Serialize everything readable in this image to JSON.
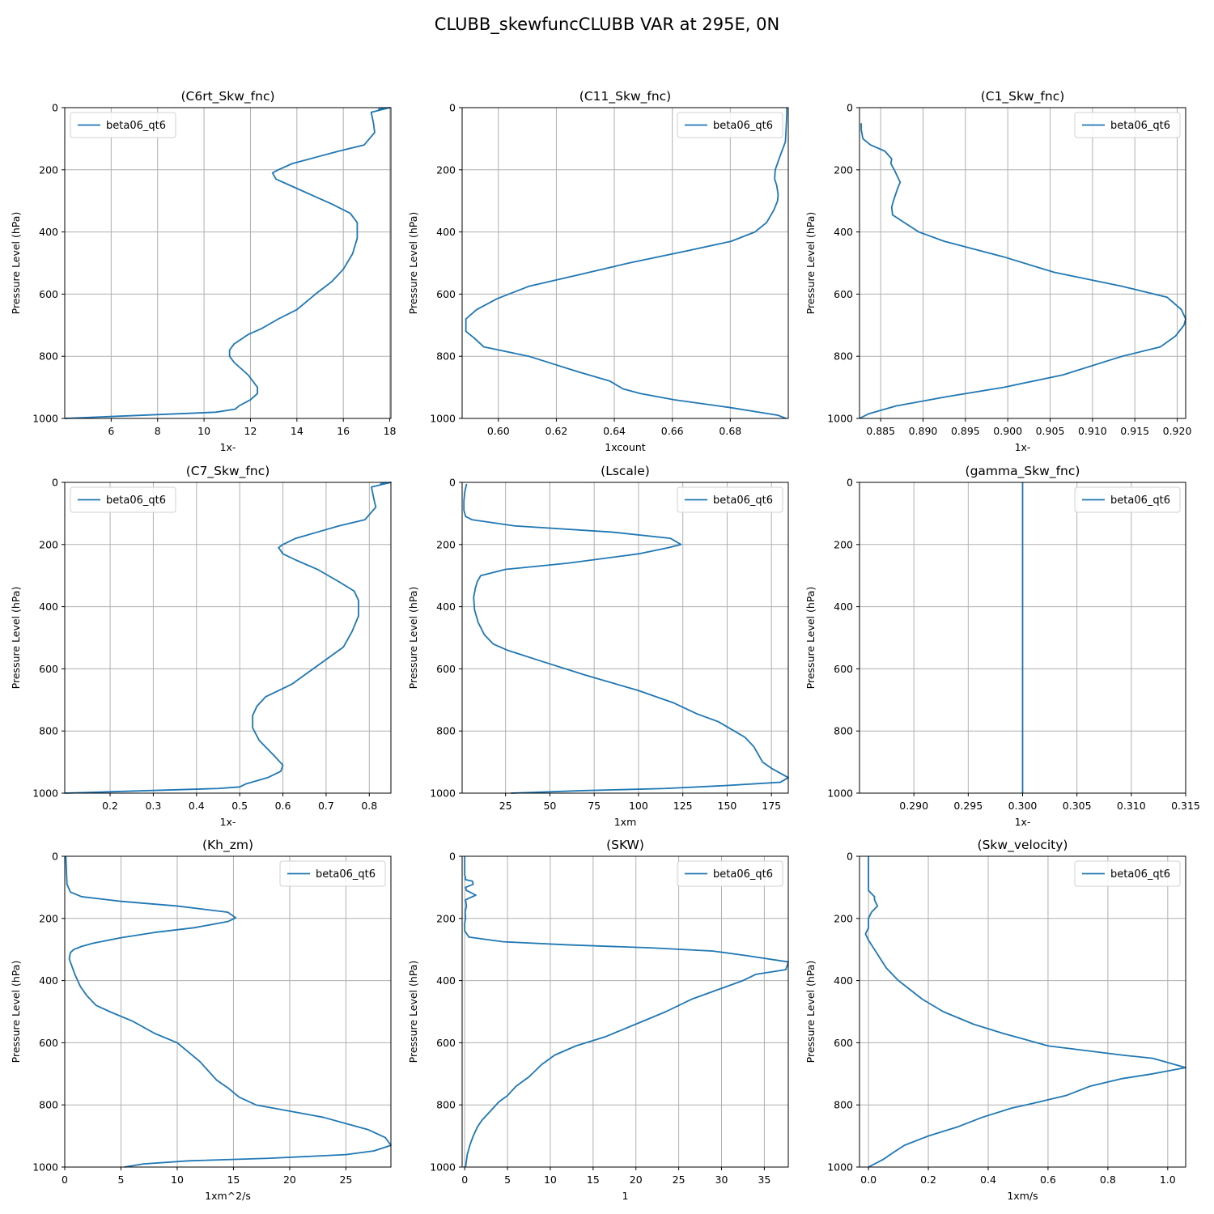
{
  "figure_title": "CLUBB_skewfuncCLUBB VAR at 295E, 0N",
  "colors": {
    "series": "#1f77b4",
    "grid": "#b0b0b0",
    "axis": "#000000"
  },
  "chart_data": [
    {
      "type": "line",
      "title": "(C6rt_Skw_fnc)",
      "xlabel": "1x-",
      "ylabel": "Pressure Level (hPa)",
      "xlim": [
        4.0,
        18.05
      ],
      "ylim": [
        1000,
        0
      ],
      "xticks": [
        6,
        8,
        10,
        12,
        14,
        16,
        18
      ],
      "yticks": [
        0,
        200,
        400,
        600,
        800,
        1000
      ],
      "grid": true,
      "legend": {
        "entries": [
          "beta06_qt6"
        ],
        "location": "top-left"
      },
      "series": [
        {
          "name": "beta06_qt6",
          "x": [
            17.5,
            18.0,
            17.2,
            17.3,
            17.35,
            16.9,
            15.8,
            14.8,
            13.8,
            13.2,
            12.95,
            13.1,
            13.7,
            14.6,
            15.5,
            16.3,
            16.6,
            16.6,
            16.4,
            16.0,
            15.5,
            14.8,
            14.0,
            13.2,
            12.5,
            11.9,
            11.3,
            11.1,
            11.1,
            11.3,
            11.9,
            12.3,
            12.3,
            12.0,
            11.5,
            11.35,
            10.5,
            4.0
          ],
          "y": [
            5,
            0,
            15,
            50,
            80,
            120,
            140,
            160,
            180,
            200,
            210,
            230,
            250,
            280,
            310,
            340,
            370,
            420,
            470,
            520,
            560,
            600,
            650,
            680,
            710,
            730,
            760,
            780,
            800,
            820,
            860,
            900,
            920,
            940,
            960,
            970,
            980,
            1000
          ]
        }
      ]
    },
    {
      "type": "line",
      "title": "(C11_Skw_fnc)",
      "xlabel": "1xcount",
      "ylabel": "Pressure Level (hPa)",
      "xlim": [
        0.5875,
        0.7
      ],
      "ylim": [
        1000,
        0
      ],
      "xticks": [
        0.6,
        0.62,
        0.64,
        0.66,
        0.68
      ],
      "yticks": [
        0,
        200,
        400,
        600,
        800,
        1000
      ],
      "grid": true,
      "legend": {
        "entries": [
          "beta06_qt6"
        ],
        "location": "top-right"
      },
      "series": [
        {
          "name": "beta06_qt6",
          "x": [
            0.6995,
            0.6995,
            0.6993,
            0.699,
            0.697,
            0.6955,
            0.6953,
            0.696,
            0.6965,
            0.6963,
            0.695,
            0.6925,
            0.6885,
            0.6803,
            0.6655,
            0.645,
            0.6267,
            0.6105,
            0.5995,
            0.5925,
            0.5888,
            0.5888,
            0.5915,
            0.595,
            0.6105,
            0.6275,
            0.6385,
            0.643,
            0.649,
            0.6607,
            0.6799,
            0.6965,
            0.6992
          ],
          "y": [
            0,
            20,
            60,
            110,
            160,
            200,
            230,
            250,
            280,
            300,
            330,
            370,
            400,
            430,
            460,
            500,
            540,
            575,
            615,
            650,
            680,
            720,
            740,
            770,
            800,
            850,
            880,
            905,
            920,
            940,
            965,
            990,
            1000
          ]
        }
      ]
    },
    {
      "type": "line",
      "title": "(C1_Skw_fnc)",
      "xlabel": "1x-",
      "ylabel": "Pressure Level (hPa)",
      "xlim": [
        0.8825,
        0.921
      ],
      "ylim": [
        1000,
        0
      ],
      "xticks": [
        0.885,
        0.89,
        0.895,
        0.9,
        0.905,
        0.91,
        0.915,
        0.92
      ],
      "yticks": [
        0,
        200,
        400,
        600,
        800,
        1000
      ],
      "grid": true,
      "legend": {
        "entries": [
          "beta06_qt6"
        ],
        "location": "top-right"
      },
      "series": [
        {
          "name": "beta06_qt6",
          "x": [
            0.8827,
            0.8827,
            0.8829,
            0.8838,
            0.8855,
            0.8863,
            0.8862,
            0.8866,
            0.8873,
            0.887,
            0.8865,
            0.8863,
            0.8864,
            0.8878,
            0.8895,
            0.8925,
            0.8995,
            0.9055,
            0.9135,
            0.9188,
            0.9205,
            0.921,
            0.9208,
            0.9198,
            0.918,
            0.9135,
            0.9065,
            0.8995,
            0.8928,
            0.8868,
            0.8836,
            0.8825
          ],
          "y": [
            50,
            70,
            100,
            120,
            140,
            165,
            180,
            200,
            240,
            260,
            300,
            320,
            345,
            370,
            400,
            430,
            480,
            530,
            575,
            610,
            650,
            680,
            700,
            735,
            770,
            800,
            860,
            900,
            930,
            960,
            985,
            1000
          ]
        }
      ]
    },
    {
      "type": "line",
      "title": "(C7_Skw_fnc)",
      "xlabel": "1x-",
      "ylabel": "Pressure Level (hPa)",
      "xlim": [
        0.095,
        0.85
      ],
      "ylim": [
        1000,
        0
      ],
      "xticks": [
        0.2,
        0.3,
        0.4,
        0.5,
        0.6,
        0.7,
        0.8
      ],
      "yticks": [
        0,
        200,
        400,
        600,
        800,
        1000
      ],
      "grid": true,
      "legend": {
        "entries": [
          "beta06_qt6"
        ],
        "location": "top-left"
      },
      "series": [
        {
          "name": "beta06_qt6",
          "x": [
            0.825,
            0.85,
            0.805,
            0.81,
            0.815,
            0.79,
            0.73,
            0.68,
            0.63,
            0.6,
            0.59,
            0.6,
            0.63,
            0.68,
            0.73,
            0.765,
            0.775,
            0.775,
            0.76,
            0.74,
            0.7,
            0.66,
            0.62,
            0.56,
            0.54,
            0.53,
            0.53,
            0.545,
            0.58,
            0.6,
            0.595,
            0.565,
            0.515,
            0.5,
            0.45,
            0.095
          ],
          "y": [
            5,
            0,
            15,
            50,
            80,
            120,
            140,
            160,
            180,
            200,
            210,
            230,
            250,
            280,
            320,
            350,
            380,
            430,
            480,
            530,
            570,
            610,
            650,
            690,
            720,
            750,
            790,
            830,
            880,
            910,
            930,
            950,
            970,
            980,
            985,
            1000
          ]
        }
      ]
    },
    {
      "type": "line",
      "title": "(Lscale)",
      "xlabel": "1xm",
      "ylabel": "Pressure Level (hPa)",
      "xlim": [
        0.5,
        184.5
      ],
      "ylim": [
        1000,
        0
      ],
      "xticks": [
        25,
        50,
        75,
        100,
        125,
        150,
        175
      ],
      "yticks": [
        0,
        200,
        400,
        600,
        800,
        1000
      ],
      "grid": true,
      "legend": {
        "entries": [
          "beta06_qt6"
        ],
        "location": "top-right"
      },
      "series": [
        {
          "name": "beta06_qt6",
          "x": [
            3,
            2,
            1.5,
            1.5,
            2.5,
            6,
            30,
            85,
            118,
            124,
            117,
            100,
            60,
            25,
            11,
            9,
            8,
            7,
            7.5,
            9.5,
            13,
            18,
            26,
            45,
            70,
            100,
            120,
            133,
            145,
            154,
            160,
            165,
            168,
            170,
            175,
            184.5,
            180,
            151,
            115,
            68,
            28
          ],
          "y": [
            5,
            30,
            60,
            90,
            110,
            120,
            140,
            160,
            180,
            200,
            210,
            230,
            260,
            280,
            300,
            320,
            340,
            370,
            410,
            450,
            490,
            520,
            540,
            575,
            620,
            670,
            710,
            745,
            770,
            800,
            820,
            850,
            880,
            900,
            920,
            950,
            965,
            975,
            985,
            992,
            1000
          ]
        }
      ]
    },
    {
      "type": "line",
      "title": "(gamma_Skw_fnc)",
      "xlabel": "1x-",
      "ylabel": "Pressure Level (hPa)",
      "xlim": [
        0.285,
        0.315
      ],
      "ylim": [
        1000,
        0
      ],
      "xticks": [
        0.29,
        0.295,
        0.3,
        0.305,
        0.31,
        0.315
      ],
      "yticks": [
        0,
        200,
        400,
        600,
        800,
        1000
      ],
      "grid": true,
      "legend": {
        "entries": [
          "beta06_qt6"
        ],
        "location": "top-right"
      },
      "series": [
        {
          "name": "beta06_qt6",
          "x": [
            0.3,
            0.3
          ],
          "y": [
            0,
            1000
          ]
        }
      ]
    },
    {
      "type": "line",
      "title": "(Kh_zm)",
      "xlabel": "1xm^2/s",
      "ylabel": "Pressure Level (hPa)",
      "xlim": [
        0,
        29.0
      ],
      "ylim": [
        1000,
        0
      ],
      "xticks": [
        0,
        5,
        10,
        15,
        20,
        25
      ],
      "yticks": [
        0,
        200,
        400,
        600,
        800,
        1000
      ],
      "grid": true,
      "legend": {
        "entries": [
          "beta06_qt6"
        ],
        "location": "top-right"
      },
      "series": [
        {
          "name": "beta06_qt6",
          "x": [
            0.1,
            0.15,
            0.2,
            0.5,
            1.5,
            5,
            10,
            14.5,
            15.2,
            14.5,
            11.5,
            8,
            5,
            2.5,
            1.5,
            0.8,
            0.5,
            0.4,
            0.6,
            0.9,
            1.4,
            2.0,
            2.8,
            4,
            6,
            8,
            10,
            12,
            13.5,
            14.5,
            15.5,
            17,
            20,
            23,
            25,
            27,
            28.5,
            29,
            27.5,
            25,
            18,
            11,
            7,
            5.3
          ],
          "y": [
            0,
            50,
            90,
            115,
            130,
            145,
            160,
            180,
            198,
            210,
            230,
            245,
            262,
            280,
            290,
            300,
            310,
            330,
            350,
            380,
            420,
            450,
            480,
            500,
            530,
            570,
            600,
            660,
            720,
            745,
            775,
            800,
            820,
            840,
            860,
            880,
            905,
            930,
            948,
            960,
            972,
            980,
            990,
            1000
          ]
        }
      ]
    },
    {
      "type": "line",
      "title": "(SKW)",
      "xlabel": "1",
      "ylabel": "Pressure Level (hPa)",
      "xlim": [
        -0.3,
        37.8
      ],
      "ylim": [
        1000,
        0
      ],
      "xticks": [
        0,
        5,
        10,
        15,
        20,
        25,
        30,
        35
      ],
      "yticks": [
        0,
        200,
        400,
        600,
        800,
        1000
      ],
      "grid": true,
      "legend": {
        "entries": [
          "beta06_qt6"
        ],
        "location": "top-right"
      },
      "series": [
        {
          "name": "beta06_qt6",
          "x": [
            0,
            0,
            0.1,
            0.05,
            0.9,
            1.0,
            0.1,
            0.2,
            1.3,
            0.1,
            0.2,
            0.05,
            0.1,
            0,
            0,
            0.5,
            4.5,
            12,
            22,
            29,
            33,
            37.8,
            37.7,
            37.5,
            34,
            32.5,
            29.5,
            26.5,
            23.5,
            20,
            16.5,
            13,
            10.5,
            9,
            7.5,
            6,
            5,
            4,
            3,
            2,
            1.5,
            1,
            0.6,
            0.3,
            0.1
          ],
          "y": [
            0,
            60,
            70,
            75,
            80,
            90,
            100,
            110,
            125,
            140,
            160,
            180,
            200,
            215,
            240,
            260,
            275,
            285,
            295,
            305,
            320,
            340,
            350,
            365,
            380,
            400,
            430,
            460,
            500,
            540,
            580,
            610,
            640,
            670,
            710,
            740,
            770,
            790,
            820,
            850,
            870,
            900,
            930,
            960,
            1000
          ]
        }
      ]
    },
    {
      "type": "line",
      "title": "(Skw_velocity)",
      "xlabel": "1xm/s",
      "ylabel": "Pressure Level (hPa)",
      "xlim": [
        -0.03,
        1.06
      ],
      "ylim": [
        1000,
        0
      ],
      "xticks": [
        0.0,
        0.2,
        0.4,
        0.6,
        0.8,
        1.0
      ],
      "yticks": [
        0,
        200,
        400,
        600,
        800,
        1000
      ],
      "grid": true,
      "legend": {
        "entries": [
          "beta06_qt6"
        ],
        "location": "top-right"
      },
      "series": [
        {
          "name": "beta06_qt6",
          "x": [
            0,
            0,
            0.0,
            0.01,
            0.02,
            0.02,
            0.03,
            0.01,
            0.0,
            0.0,
            0.0,
            -0.01,
            0.0,
            0.02,
            0.04,
            0.06,
            0.1,
            0.14,
            0.18,
            0.25,
            0.35,
            0.45,
            0.6,
            0.85,
            0.95,
            1.06,
            0.95,
            0.85,
            0.74,
            0.66,
            0.55,
            0.48,
            0.38,
            0.3,
            0.2,
            0.12,
            0.08,
            0.05,
            0.0
          ],
          "y": [
            0,
            100,
            110,
            120,
            130,
            140,
            160,
            180,
            200,
            220,
            230,
            250,
            270,
            300,
            330,
            360,
            400,
            430,
            460,
            500,
            540,
            570,
            610,
            640,
            650,
            680,
            700,
            715,
            740,
            770,
            795,
            810,
            840,
            870,
            900,
            930,
            955,
            975,
            1000
          ]
        }
      ]
    }
  ]
}
